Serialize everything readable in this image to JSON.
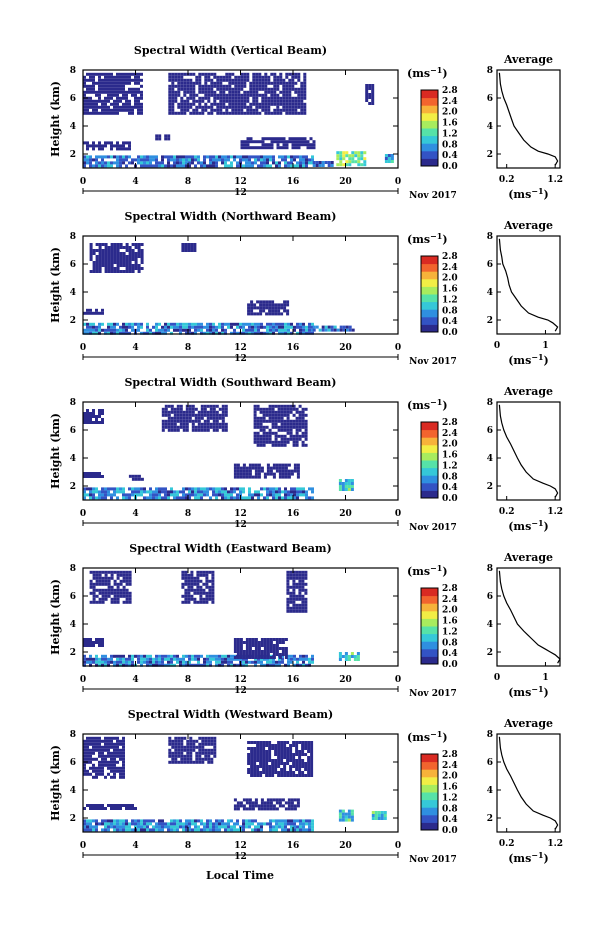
{
  "figure": {
    "date_label": "Nov 2017",
    "day_label": "12",
    "xlabel": "Local Time",
    "ylabel": "Height (km)",
    "colorbar_unit": "(ms",
    "colorbar_unit_exp": "−1",
    "avg_title": "Average",
    "avg_xlabel": "(ms",
    "avg_xlabel_exp": "−1"
  },
  "colorbar": {
    "ticks": [
      "2.8",
      "2.4",
      "2.0",
      "1.6",
      "1.2",
      "0.8",
      "0.4",
      "0.0"
    ],
    "range": [
      0.0,
      2.8
    ],
    "colors": [
      "#2b2a8c",
      "#3353c4",
      "#2f8fe0",
      "#35c8d8",
      "#56e2a8",
      "#a8ec5e",
      "#f2ee45",
      "#f7b23a",
      "#f2642e",
      "#d92a22"
    ]
  },
  "chart_data": [
    {
      "type": "heatmap",
      "title": "Spectral Width (Vertical Beam)",
      "xlabel": "Local Time",
      "ylabel": "Height (km)",
      "xlim": [
        0,
        24
      ],
      "ylim": [
        1,
        8
      ],
      "xticks": [
        "0",
        "4",
        "8",
        "12",
        "16",
        "20",
        "0"
      ],
      "yticks": [
        "2",
        "4",
        "6",
        "8"
      ],
      "value_range": [
        0.0,
        2.8
      ],
      "regions": [
        {
          "t": [
            0,
            17.5
          ],
          "h": [
            1.1,
            1.9
          ],
          "level": 0.55
        },
        {
          "t": [
            17.5,
            19
          ],
          "h": [
            1.1,
            1.5
          ],
          "level": 0.45
        },
        {
          "t": [
            19.3,
            21.5
          ],
          "h": [
            1.2,
            2.2
          ],
          "level": 1.3
        },
        {
          "t": [
            23,
            23.5
          ],
          "h": [
            1.5,
            2.0
          ],
          "level": 0.8
        },
        {
          "t": [
            0,
            3.5
          ],
          "h": [
            2.4,
            2.9
          ],
          "level": 0.15
        },
        {
          "t": [
            12,
            17.5
          ],
          "h": [
            2.4,
            3.2
          ],
          "level": 0.15
        },
        {
          "t": [
            5.5,
            6.5
          ],
          "h": [
            3.0,
            3.4
          ],
          "level": 0.15
        },
        {
          "t": [
            0,
            4.5
          ],
          "h": [
            5.0,
            7.8
          ],
          "level": 0.1
        },
        {
          "t": [
            6.5,
            17
          ],
          "h": [
            5.0,
            7.8
          ],
          "level": 0.1
        },
        {
          "t": [
            21.5,
            22
          ],
          "h": [
            5.5,
            7.0
          ],
          "level": 0.1
        }
      ],
      "average": {
        "xlim": [
          0.0,
          1.3
        ],
        "xticks": [
          "0.2",
          "1.2"
        ],
        "ylim": [
          1,
          8
        ],
        "yticks": [
          "2",
          "4",
          "6",
          "8"
        ],
        "profile": [
          [
            7.8,
            0.05
          ],
          [
            7.0,
            0.07
          ],
          [
            6.5,
            0.1
          ],
          [
            6.0,
            0.14
          ],
          [
            5.5,
            0.2
          ],
          [
            5.0,
            0.25
          ],
          [
            4.5,
            0.3
          ],
          [
            4.0,
            0.35
          ],
          [
            3.5,
            0.45
          ],
          [
            3.0,
            0.55
          ],
          [
            2.5,
            0.7
          ],
          [
            2.2,
            0.85
          ],
          [
            2.0,
            1.05
          ],
          [
            1.8,
            1.2
          ],
          [
            1.5,
            1.25
          ],
          [
            1.2,
            1.2
          ]
        ]
      }
    },
    {
      "type": "heatmap",
      "title": "Spectral Width (Northward Beam)",
      "xlabel": "Local Time",
      "ylabel": "Height (km)",
      "xlim": [
        0,
        24
      ],
      "ylim": [
        1,
        8
      ],
      "xticks": [
        "0",
        "4",
        "8",
        "12",
        "16",
        "20",
        "0"
      ],
      "yticks": [
        "2",
        "4",
        "6",
        "8"
      ],
      "value_range": [
        0.0,
        2.8
      ],
      "regions": [
        {
          "t": [
            0,
            17.5
          ],
          "h": [
            1.1,
            1.8
          ],
          "level": 0.6
        },
        {
          "t": [
            17.5,
            20.5
          ],
          "h": [
            1.2,
            1.6
          ],
          "level": 0.5
        },
        {
          "t": [
            0,
            1.5
          ],
          "h": [
            2.4,
            2.8
          ],
          "level": 0.15
        },
        {
          "t": [
            12.5,
            15.5
          ],
          "h": [
            2.4,
            3.4
          ],
          "level": 0.15
        },
        {
          "t": [
            0.5,
            4.5
          ],
          "h": [
            5.5,
            7.5
          ],
          "level": 0.1
        },
        {
          "t": [
            7.5,
            8.5
          ],
          "h": [
            7.0,
            7.5
          ],
          "level": 0.1
        }
      ],
      "average": {
        "xlim": [
          0.0,
          1.3
        ],
        "xticks": [
          "0",
          "1"
        ],
        "ylim": [
          1,
          8
        ],
        "yticks": [
          "2",
          "4",
          "6",
          "8"
        ],
        "profile": [
          [
            7.8,
            0.05
          ],
          [
            7.0,
            0.07
          ],
          [
            6.5,
            0.1
          ],
          [
            6.0,
            0.12
          ],
          [
            5.5,
            0.18
          ],
          [
            5.0,
            0.22
          ],
          [
            4.5,
            0.25
          ],
          [
            4.0,
            0.3
          ],
          [
            3.5,
            0.4
          ],
          [
            3.0,
            0.5
          ],
          [
            2.5,
            0.65
          ],
          [
            2.2,
            0.85
          ],
          [
            2.0,
            1.05
          ],
          [
            1.8,
            1.15
          ],
          [
            1.5,
            1.25
          ],
          [
            1.2,
            1.2
          ]
        ]
      }
    },
    {
      "type": "heatmap",
      "title": "Spectral Width (Southward Beam)",
      "xlabel": "Local Time",
      "ylabel": "Height (km)",
      "xlim": [
        0,
        24
      ],
      "ylim": [
        1,
        8
      ],
      "xticks": [
        "0",
        "4",
        "8",
        "12",
        "16",
        "20",
        "0"
      ],
      "yticks": [
        "2",
        "4",
        "6",
        "8"
      ],
      "value_range": [
        0.0,
        2.8
      ],
      "regions": [
        {
          "t": [
            0,
            17.5
          ],
          "h": [
            1.1,
            1.9
          ],
          "level": 0.65
        },
        {
          "t": [
            19.5,
            20.5
          ],
          "h": [
            1.8,
            2.5
          ],
          "level": 1.1
        },
        {
          "t": [
            0,
            1.5
          ],
          "h": [
            2.6,
            3.0
          ],
          "level": 0.15
        },
        {
          "t": [
            11.5,
            16.5
          ],
          "h": [
            2.6,
            3.6
          ],
          "level": 0.15
        },
        {
          "t": [
            3.5,
            4.5
          ],
          "h": [
            2.4,
            2.8
          ],
          "level": 0.15
        },
        {
          "t": [
            6,
            11
          ],
          "h": [
            6.0,
            7.8
          ],
          "level": 0.1
        },
        {
          "t": [
            13,
            17
          ],
          "h": [
            4.8,
            7.8
          ],
          "level": 0.1
        },
        {
          "t": [
            0,
            1.5
          ],
          "h": [
            6.5,
            7.5
          ],
          "level": 0.1
        }
      ],
      "average": {
        "xlim": [
          0.0,
          1.3
        ],
        "xticks": [
          "0.2",
          "1.2"
        ],
        "ylim": [
          1,
          8
        ],
        "yticks": [
          "2",
          "4",
          "6",
          "8"
        ],
        "profile": [
          [
            7.8,
            0.05
          ],
          [
            7.0,
            0.07
          ],
          [
            6.5,
            0.1
          ],
          [
            6.0,
            0.14
          ],
          [
            5.5,
            0.2
          ],
          [
            5.0,
            0.28
          ],
          [
            4.5,
            0.35
          ],
          [
            4.0,
            0.42
          ],
          [
            3.5,
            0.5
          ],
          [
            3.0,
            0.6
          ],
          [
            2.5,
            0.75
          ],
          [
            2.2,
            0.95
          ],
          [
            2.0,
            1.1
          ],
          [
            1.8,
            1.2
          ],
          [
            1.5,
            1.25
          ],
          [
            1.2,
            1.2
          ]
        ]
      }
    },
    {
      "type": "heatmap",
      "title": "Spectral Width (Eastward Beam)",
      "xlabel": "Local Time",
      "ylabel": "Height (km)",
      "xlim": [
        0,
        24
      ],
      "ylim": [
        1,
        8
      ],
      "xticks": [
        "0",
        "4",
        "8",
        "12",
        "16",
        "20",
        "0"
      ],
      "yticks": [
        "2",
        "4",
        "6",
        "8"
      ],
      "value_range": [
        0.0,
        2.8
      ],
      "regions": [
        {
          "t": [
            0,
            17.5
          ],
          "h": [
            1.1,
            1.8
          ],
          "level": 0.6
        },
        {
          "t": [
            19.5,
            21
          ],
          "h": [
            1.4,
            2.0
          ],
          "level": 1.0
        },
        {
          "t": [
            0,
            1.5
          ],
          "h": [
            2.4,
            3.0
          ],
          "level": 0.15
        },
        {
          "t": [
            11.5,
            15.5
          ],
          "h": [
            1.6,
            3.0
          ],
          "level": 0.15
        },
        {
          "t": [
            0.5,
            3.5
          ],
          "h": [
            5.5,
            7.8
          ],
          "level": 0.1
        },
        {
          "t": [
            7.5,
            10
          ],
          "h": [
            5.5,
            7.8
          ],
          "level": 0.1
        },
        {
          "t": [
            15.5,
            17
          ],
          "h": [
            5.0,
            7.8
          ],
          "level": 0.1
        }
      ],
      "average": {
        "xlim": [
          0.0,
          1.3
        ],
        "xticks": [
          "0",
          "1"
        ],
        "ylim": [
          1,
          8
        ],
        "yticks": [
          "2",
          "4",
          "6",
          "8"
        ],
        "profile": [
          [
            7.8,
            0.05
          ],
          [
            7.0,
            0.07
          ],
          [
            6.5,
            0.1
          ],
          [
            6.0,
            0.14
          ],
          [
            5.5,
            0.2
          ],
          [
            5.0,
            0.28
          ],
          [
            4.5,
            0.35
          ],
          [
            4.0,
            0.42
          ],
          [
            3.5,
            0.55
          ],
          [
            3.0,
            0.7
          ],
          [
            2.5,
            0.85
          ],
          [
            2.2,
            1.0
          ],
          [
            2.0,
            1.1
          ],
          [
            1.8,
            1.2
          ],
          [
            1.5,
            1.3
          ],
          [
            1.2,
            1.25
          ]
        ]
      }
    },
    {
      "type": "heatmap",
      "title": "Spectral Width (Westward Beam)",
      "xlabel": "Local Time",
      "ylabel": "Height (km)",
      "xlim": [
        0,
        24
      ],
      "ylim": [
        1,
        8
      ],
      "xticks": [
        "0",
        "4",
        "8",
        "12",
        "16",
        "20",
        "0"
      ],
      "yticks": [
        "2",
        "4",
        "6",
        "8"
      ],
      "value_range": [
        0.0,
        2.8
      ],
      "regions": [
        {
          "t": [
            0,
            17.5
          ],
          "h": [
            1.1,
            1.9
          ],
          "level": 0.65
        },
        {
          "t": [
            19.5,
            20.5
          ],
          "h": [
            1.8,
            2.6
          ],
          "level": 1.0
        },
        {
          "t": [
            22,
            23
          ],
          "h": [
            2.0,
            2.5
          ],
          "level": 1.0
        },
        {
          "t": [
            0,
            4
          ],
          "h": [
            2.6,
            3.0
          ],
          "level": 0.15
        },
        {
          "t": [
            11.5,
            16.5
          ],
          "h": [
            2.6,
            3.4
          ],
          "level": 0.15
        },
        {
          "t": [
            0,
            3
          ],
          "h": [
            5.0,
            7.8
          ],
          "level": 0.1
        },
        {
          "t": [
            6.5,
            10
          ],
          "h": [
            6.0,
            7.8
          ],
          "level": 0.1
        },
        {
          "t": [
            12.5,
            17.5
          ],
          "h": [
            5.0,
            7.5
          ],
          "level": 0.1
        }
      ],
      "average": {
        "xlim": [
          0.0,
          1.3
        ],
        "xticks": [
          "0.2",
          "1.2"
        ],
        "ylim": [
          1,
          8
        ],
        "yticks": [
          "2",
          "4",
          "6",
          "8"
        ],
        "profile": [
          [
            7.8,
            0.05
          ],
          [
            7.0,
            0.07
          ],
          [
            6.5,
            0.1
          ],
          [
            6.0,
            0.14
          ],
          [
            5.5,
            0.2
          ],
          [
            5.0,
            0.28
          ],
          [
            4.5,
            0.35
          ],
          [
            4.0,
            0.42
          ],
          [
            3.5,
            0.5
          ],
          [
            3.0,
            0.6
          ],
          [
            2.5,
            0.75
          ],
          [
            2.2,
            0.95
          ],
          [
            2.0,
            1.1
          ],
          [
            1.8,
            1.2
          ],
          [
            1.5,
            1.25
          ],
          [
            1.2,
            1.2
          ]
        ]
      }
    }
  ]
}
